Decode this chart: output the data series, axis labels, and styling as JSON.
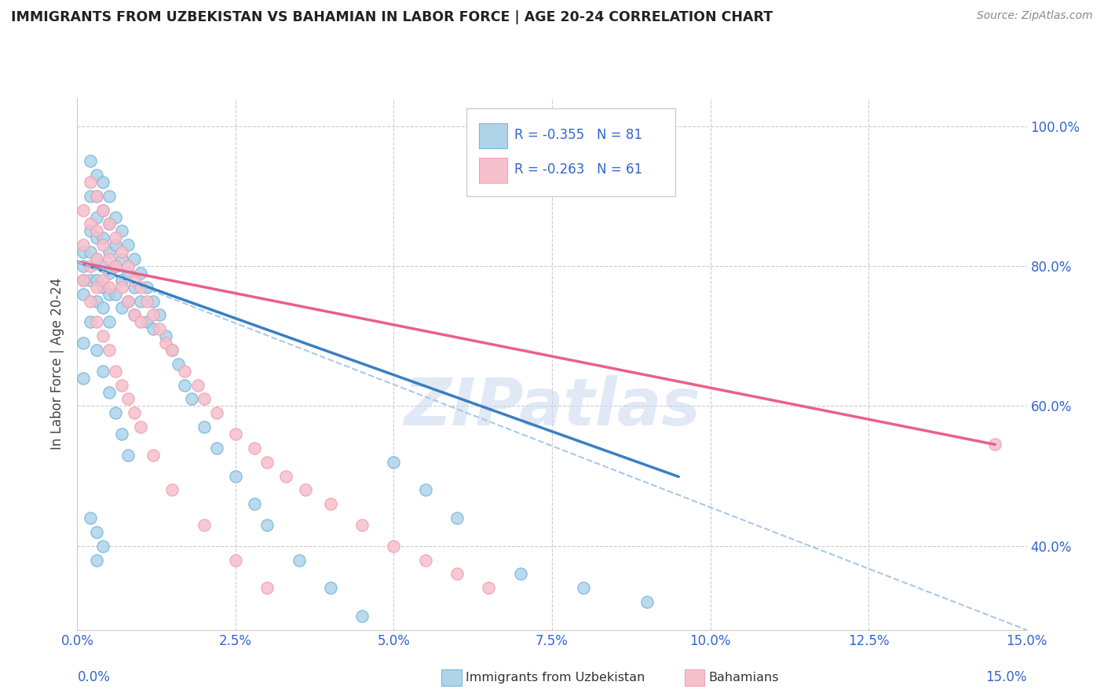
{
  "title": "IMMIGRANTS FROM UZBEKISTAN VS BAHAMIAN IN LABOR FORCE | AGE 20-24 CORRELATION CHART",
  "source": "Source: ZipAtlas.com",
  "ylabel": "In Labor Force | Age 20-24",
  "xmin": 0.0,
  "xmax": 0.15,
  "ymin": 0.28,
  "ymax": 1.04,
  "yticks": [
    0.4,
    0.6,
    0.8,
    1.0
  ],
  "ytick_labels": [
    "40.0%",
    "60.0%",
    "80.0%",
    "100.0%"
  ],
  "xticks": [
    0.0,
    0.025,
    0.05,
    0.075,
    0.1,
    0.125,
    0.15
  ],
  "xtick_labels": [
    "0.0%",
    "2.5%",
    "5.0%",
    "7.5%",
    "10.0%",
    "12.5%",
    "15.0%"
  ],
  "legend_text1": "R = -0.355   N = 81",
  "legend_text2": "R = -0.263   N = 61",
  "color_uzbek": "#7ab8d9",
  "color_uzbek_fill": "#aed4ea",
  "color_uzbek_line": "#3a7fc1",
  "color_bahamian": "#f5a0b0",
  "color_bahamian_fill": "#f5c0cc",
  "color_bahamian_line": "#e8608a",
  "color_dashed": "#aac8e8",
  "watermark": "ZIPatlas",
  "uzbek_scatter_x": [
    0.001,
    0.001,
    0.001,
    0.001,
    0.002,
    0.002,
    0.002,
    0.002,
    0.002,
    0.003,
    0.003,
    0.003,
    0.003,
    0.003,
    0.003,
    0.003,
    0.004,
    0.004,
    0.004,
    0.004,
    0.004,
    0.004,
    0.005,
    0.005,
    0.005,
    0.005,
    0.005,
    0.005,
    0.006,
    0.006,
    0.006,
    0.006,
    0.007,
    0.007,
    0.007,
    0.007,
    0.008,
    0.008,
    0.008,
    0.009,
    0.009,
    0.009,
    0.01,
    0.01,
    0.011,
    0.011,
    0.012,
    0.012,
    0.013,
    0.014,
    0.015,
    0.016,
    0.017,
    0.018,
    0.02,
    0.022,
    0.025,
    0.028,
    0.03,
    0.035,
    0.04,
    0.045,
    0.05,
    0.055,
    0.06,
    0.07,
    0.08,
    0.09,
    0.001,
    0.001,
    0.002,
    0.003,
    0.004,
    0.005,
    0.006,
    0.007,
    0.008,
    0.002,
    0.003,
    0.004,
    0.003
  ],
  "uzbek_scatter_y": [
    0.82,
    0.8,
    0.78,
    0.76,
    0.95,
    0.9,
    0.85,
    0.82,
    0.78,
    0.93,
    0.9,
    0.87,
    0.84,
    0.81,
    0.78,
    0.75,
    0.92,
    0.88,
    0.84,
    0.8,
    0.77,
    0.74,
    0.9,
    0.86,
    0.82,
    0.79,
    0.76,
    0.72,
    0.87,
    0.83,
    0.8,
    0.76,
    0.85,
    0.81,
    0.78,
    0.74,
    0.83,
    0.79,
    0.75,
    0.81,
    0.77,
    0.73,
    0.79,
    0.75,
    0.77,
    0.72,
    0.75,
    0.71,
    0.73,
    0.7,
    0.68,
    0.66,
    0.63,
    0.61,
    0.57,
    0.54,
    0.5,
    0.46,
    0.43,
    0.38,
    0.34,
    0.3,
    0.52,
    0.48,
    0.44,
    0.36,
    0.34,
    0.32,
    0.69,
    0.64,
    0.72,
    0.68,
    0.65,
    0.62,
    0.59,
    0.56,
    0.53,
    0.44,
    0.42,
    0.4,
    0.38
  ],
  "bahamian_scatter_x": [
    0.001,
    0.001,
    0.001,
    0.002,
    0.002,
    0.002,
    0.003,
    0.003,
    0.003,
    0.003,
    0.004,
    0.004,
    0.004,
    0.005,
    0.005,
    0.005,
    0.006,
    0.006,
    0.007,
    0.007,
    0.008,
    0.008,
    0.009,
    0.009,
    0.01,
    0.01,
    0.011,
    0.012,
    0.013,
    0.014,
    0.015,
    0.017,
    0.019,
    0.02,
    0.022,
    0.025,
    0.028,
    0.03,
    0.033,
    0.036,
    0.04,
    0.045,
    0.05,
    0.055,
    0.06,
    0.065,
    0.002,
    0.003,
    0.004,
    0.005,
    0.006,
    0.007,
    0.008,
    0.009,
    0.01,
    0.012,
    0.015,
    0.02,
    0.025,
    0.03,
    0.145
  ],
  "bahamian_scatter_y": [
    0.88,
    0.83,
    0.78,
    0.92,
    0.86,
    0.8,
    0.9,
    0.85,
    0.81,
    0.77,
    0.88,
    0.83,
    0.78,
    0.86,
    0.81,
    0.77,
    0.84,
    0.8,
    0.82,
    0.77,
    0.8,
    0.75,
    0.78,
    0.73,
    0.77,
    0.72,
    0.75,
    0.73,
    0.71,
    0.69,
    0.68,
    0.65,
    0.63,
    0.61,
    0.59,
    0.56,
    0.54,
    0.52,
    0.5,
    0.48,
    0.46,
    0.43,
    0.4,
    0.38,
    0.36,
    0.34,
    0.75,
    0.72,
    0.7,
    0.68,
    0.65,
    0.63,
    0.61,
    0.59,
    0.57,
    0.53,
    0.48,
    0.43,
    0.38,
    0.34,
    0.545
  ],
  "uzbek_line_x": [
    0.0,
    0.095
  ],
  "uzbek_line_y": [
    0.806,
    0.499
  ],
  "bahamian_line_x": [
    0.0,
    0.145
  ],
  "bahamian_line_y": [
    0.806,
    0.545
  ],
  "dashed_line_x": [
    0.0,
    0.15
  ],
  "dashed_line_y": [
    0.806,
    0.28
  ]
}
